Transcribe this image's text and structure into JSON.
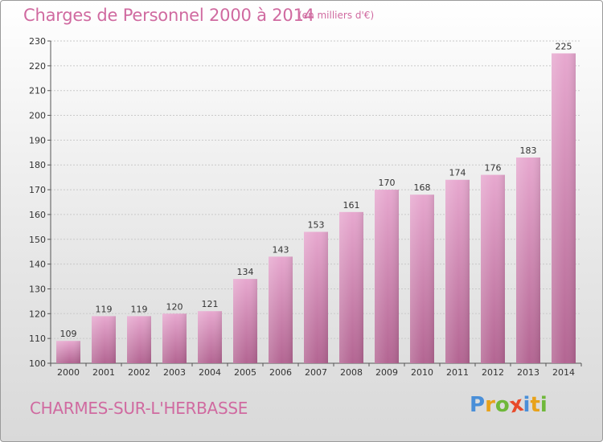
{
  "header": {
    "title": "Charges de Personnel 2000 à 2014",
    "subtitle": "(en milliers d'€)"
  },
  "footer": {
    "commune": "CHARMES-SUR-L'HERBASSE",
    "brand": "Proxiti",
    "brand_colors": [
      "#4a8fd8",
      "#e8a21a",
      "#6fb83a",
      "#e84a2a",
      "#4a8fd8",
      "#e8a21a",
      "#6fb83a"
    ]
  },
  "colors": {
    "bar_top": "#e7a8cf",
    "bar_bottom": "#b36592",
    "text": "#d06aa0"
  },
  "chart_data": {
    "type": "bar",
    "title": "Charges de Personnel 2000 à 2014",
    "subtitle": "(en milliers d'€)",
    "xlabel": "",
    "ylabel": "",
    "ylim": [
      100,
      230
    ],
    "yticks": [
      100,
      110,
      120,
      130,
      140,
      150,
      160,
      170,
      180,
      190,
      200,
      210,
      220,
      230
    ],
    "grid": true,
    "categories": [
      "2000",
      "2001",
      "2002",
      "2003",
      "2004",
      "2005",
      "2006",
      "2007",
      "2008",
      "2009",
      "2010",
      "2011",
      "2012",
      "2013",
      "2014"
    ],
    "values": [
      109,
      119,
      119,
      120,
      121,
      134,
      143,
      153,
      161,
      170,
      168,
      174,
      176,
      183,
      225
    ]
  }
}
